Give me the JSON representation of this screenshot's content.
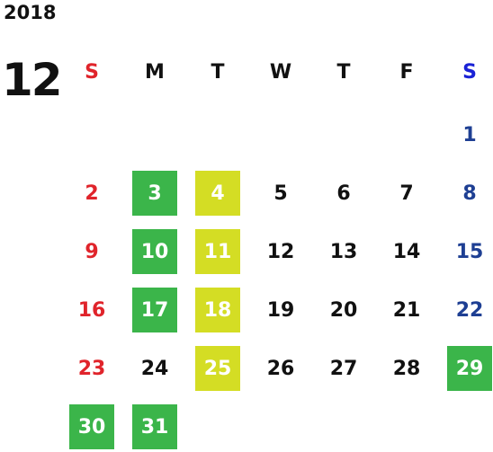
{
  "year": "2018",
  "month": "12",
  "weekdays": [
    "S",
    "M",
    "T",
    "W",
    "T",
    "F",
    "S"
  ],
  "weeks": [
    [
      "",
      "",
      "",
      "",
      "",
      "",
      "1"
    ],
    [
      "2",
      "3",
      "4",
      "5",
      "6",
      "7",
      "8"
    ],
    [
      "9",
      "10",
      "11",
      "12",
      "13",
      "14",
      "15"
    ],
    [
      "16",
      "17",
      "18",
      "19",
      "20",
      "21",
      "22"
    ],
    [
      "23",
      "24",
      "25",
      "26",
      "27",
      "28",
      "29"
    ],
    [
      "30",
      "31",
      "",
      "",
      "",
      "",
      ""
    ]
  ],
  "highlight_green": [
    "3",
    "10",
    "17",
    "29",
    "30",
    "31"
  ],
  "highlight_lime": [
    "4",
    "11",
    "18",
    "25"
  ],
  "colors": {
    "sunday": "#e0242b",
    "saturday_header": "#1a22d6",
    "saturday": "#1e3f93",
    "green": "#3bb54a",
    "lime": "#d4dd24"
  }
}
